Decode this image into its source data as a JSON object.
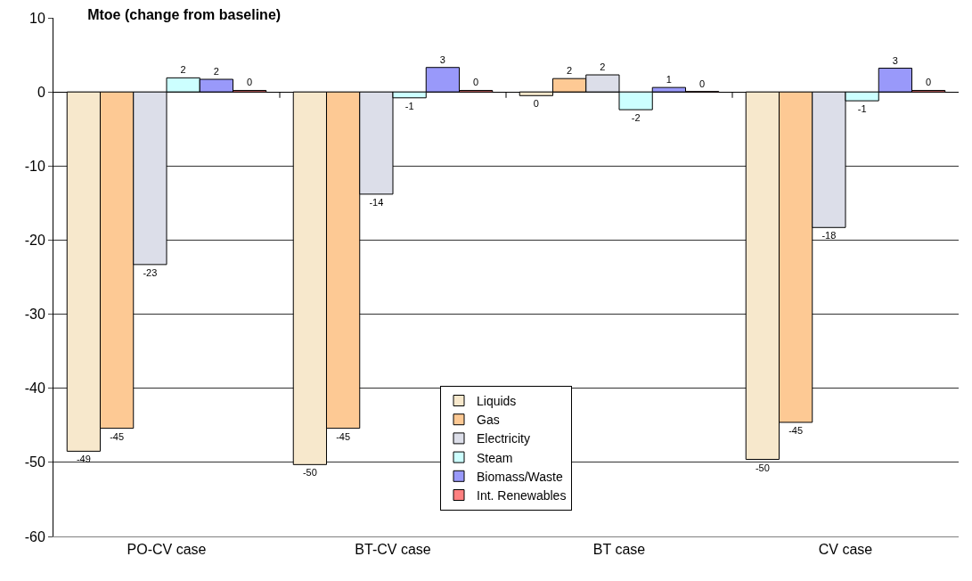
{
  "chart_data": {
    "type": "bar",
    "title": "Mtoe (change from baseline)",
    "categories": [
      "PO-CV case",
      "BT-CV case",
      "BT case",
      "CV case"
    ],
    "series": [
      {
        "name": "Liquids",
        "color": "#f7e8cc",
        "values": [
          -48.5,
          -50.3,
          -0.5,
          -49.6
        ],
        "value_labels": [
          "-49",
          "-50",
          "0",
          "-50"
        ]
      },
      {
        "name": "Gas",
        "color": "#fdc994",
        "values": [
          -45.4,
          -45.4,
          1.8,
          -44.6
        ],
        "value_labels": [
          "-45",
          "-45",
          "2",
          "-45"
        ]
      },
      {
        "name": "Electricity",
        "color": "#dcdee9",
        "values": [
          -23.3,
          -13.8,
          2.3,
          -18.3
        ],
        "value_labels": [
          "-23",
          "-14",
          "2",
          "-18"
        ]
      },
      {
        "name": "Steam",
        "color": "#ccffff",
        "values": [
          1.9,
          -0.8,
          -2.4,
          -1.2
        ],
        "value_labels": [
          "2",
          "-1",
          "-2",
          "-1"
        ]
      },
      {
        "name": "Biomass/Waste",
        "color": "#9999fa",
        "values": [
          1.7,
          3.3,
          0.6,
          3.2
        ],
        "value_labels": [
          "2",
          "3",
          "1",
          "3"
        ]
      },
      {
        "name": "Int. Renewables",
        "color": "#ff8080",
        "values": [
          0.2,
          0.2,
          0.05,
          0.2
        ],
        "value_labels": [
          "0",
          "0",
          "0",
          "0"
        ]
      }
    ],
    "ylim": [
      -60,
      10
    ],
    "yticks": [
      -60,
      -50,
      -40,
      -30,
      -20,
      -10,
      0,
      10
    ],
    "grid": "y",
    "legend": "bottom"
  }
}
